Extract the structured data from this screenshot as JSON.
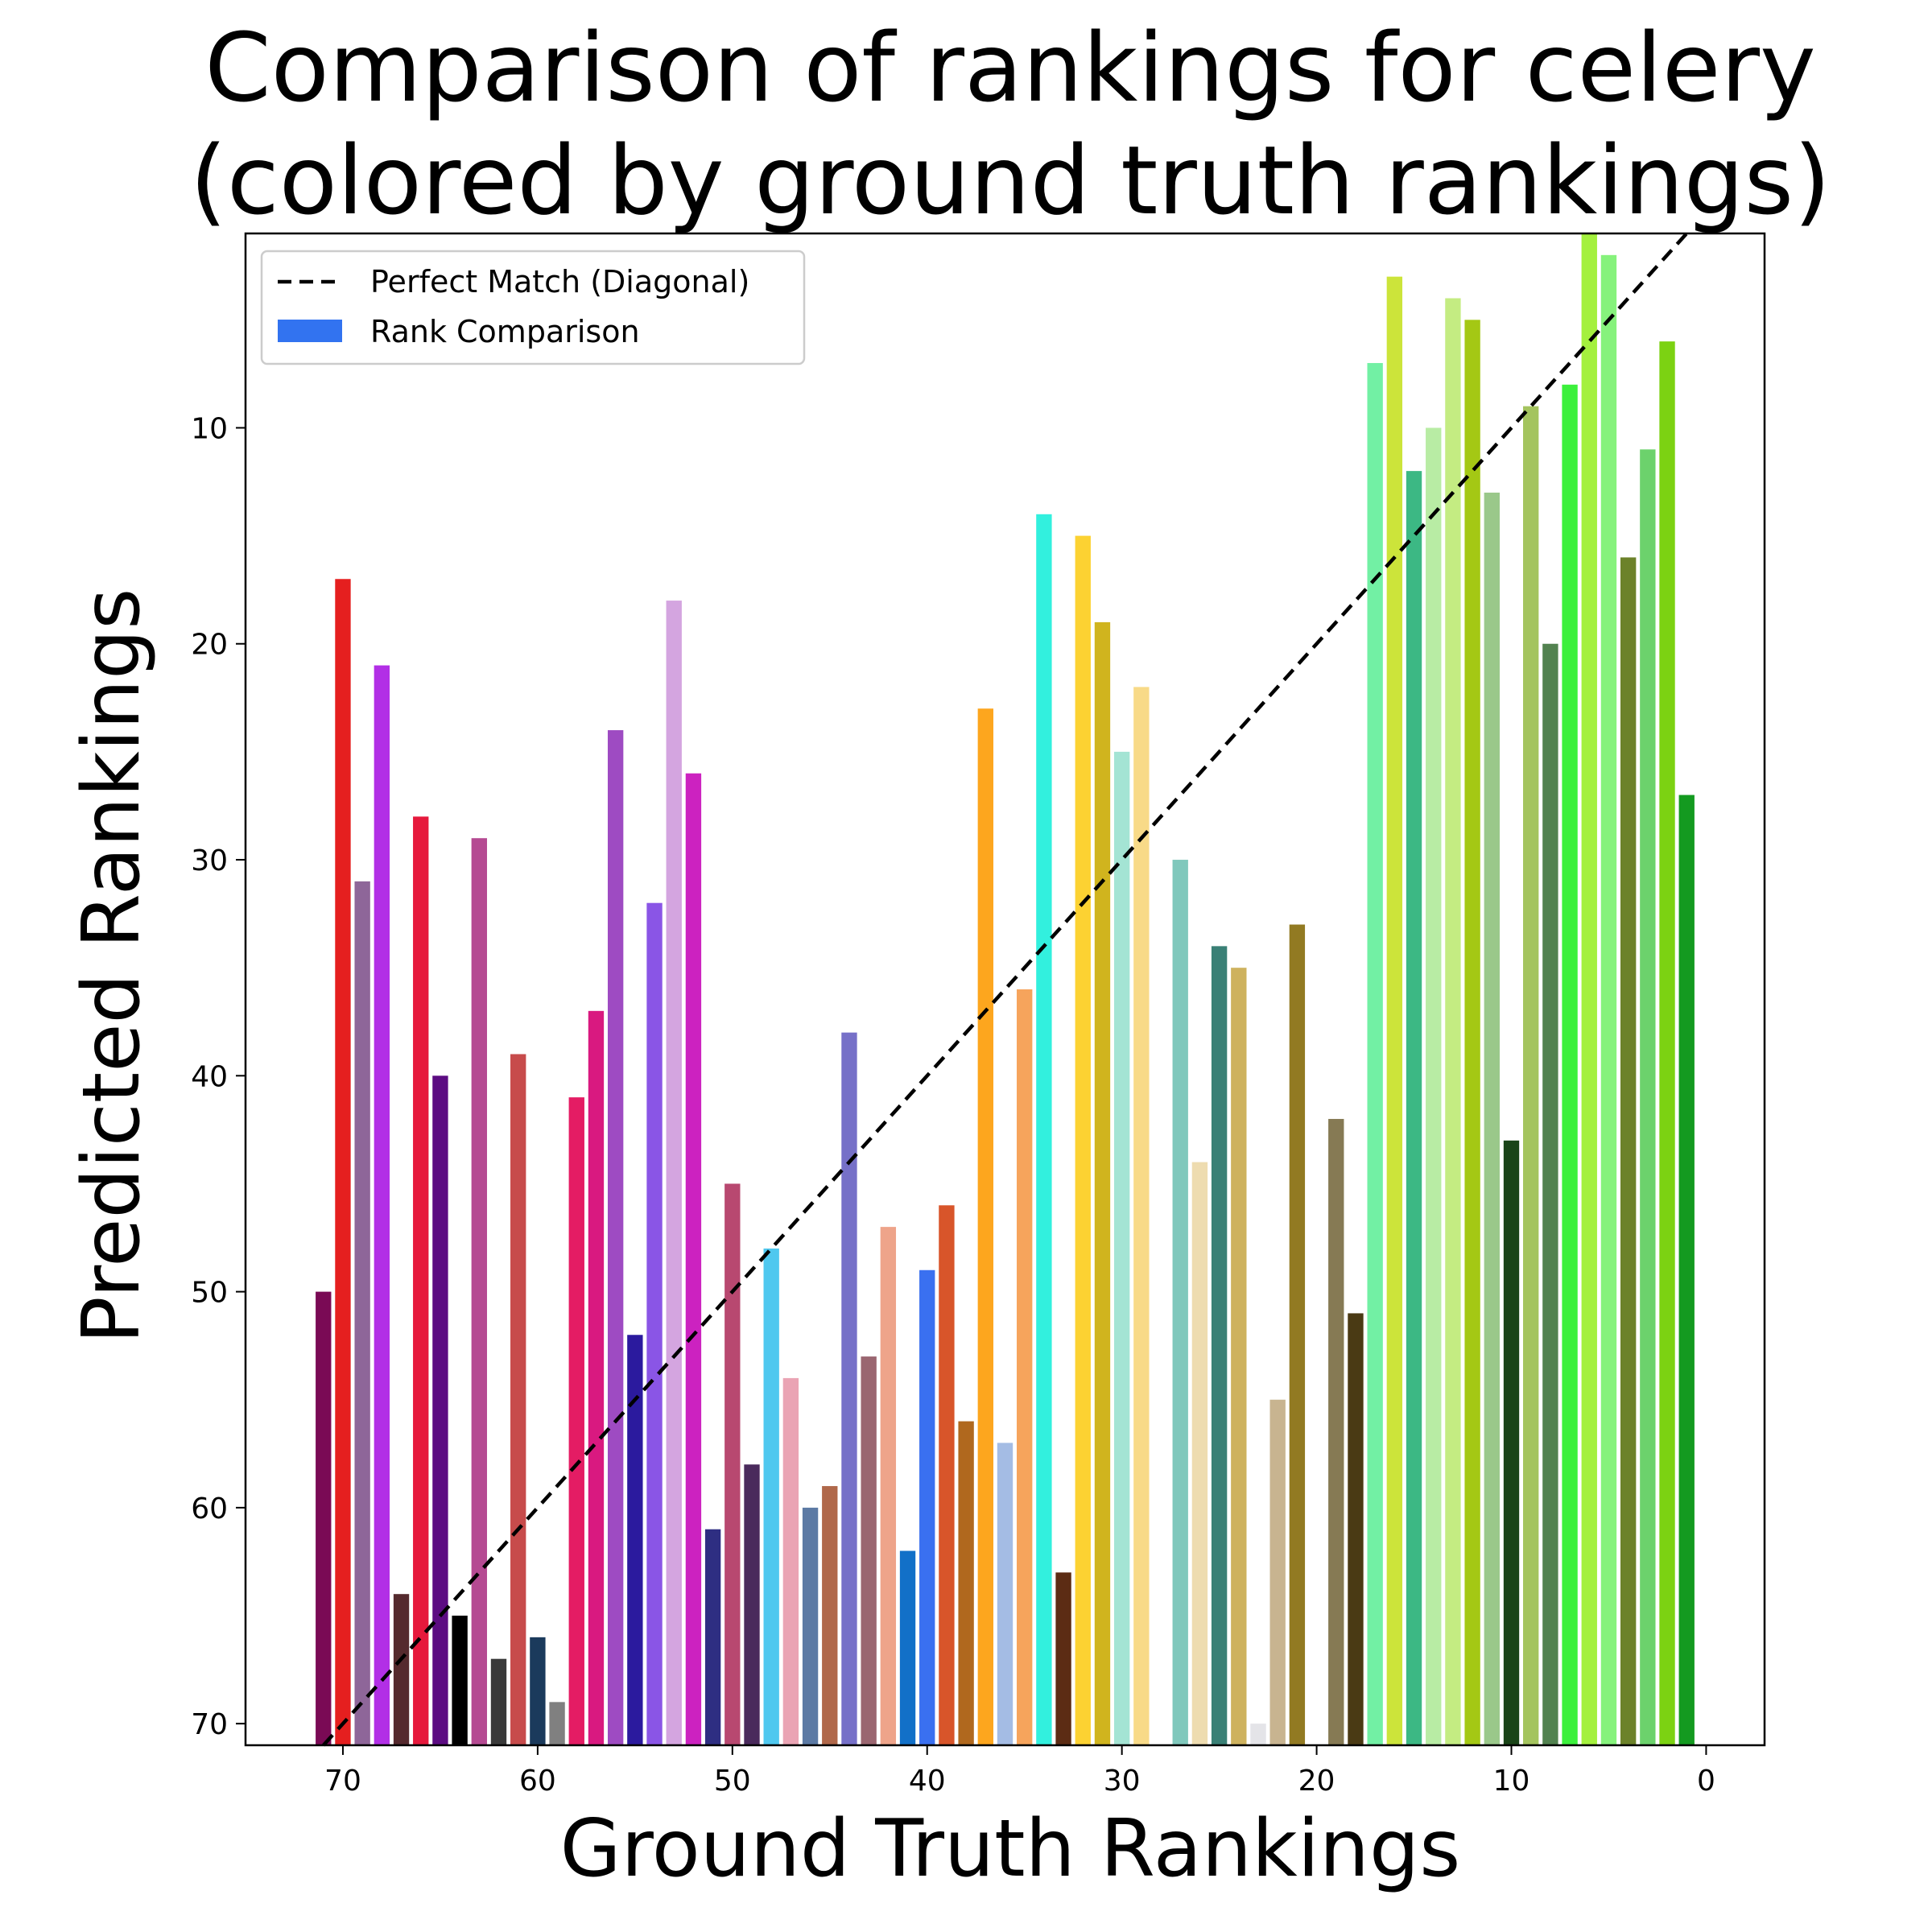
{
  "chart_data": {
    "type": "bar",
    "title_lines": [
      "Comparison of rankings for celery",
      "(colored by ground truth rankings)"
    ],
    "xlabel": "Ground Truth Rankings",
    "ylabel": "Predicted Rankings",
    "x_axis_inverted": true,
    "y_axis_inverted": true,
    "xlim": [
      75,
      -3
    ],
    "ylim": [
      71,
      1
    ],
    "xticks": [
      70,
      60,
      50,
      40,
      30,
      20,
      10,
      0
    ],
    "yticks": [
      10,
      20,
      30,
      40,
      50,
      60,
      70
    ],
    "legend": {
      "placement": "top-left",
      "entries": [
        {
          "label": "Perfect Match (Diagonal)",
          "style": "dashed-line",
          "color": "#000000"
        },
        {
          "label": "Rank Comparison",
          "style": "patch",
          "color": "#3273f0"
        }
      ]
    },
    "diagonal": {
      "style": "dashed",
      "color": "#000000"
    },
    "bars": [
      {
        "x": 71,
        "y": 50,
        "color": "#7a0a55"
      },
      {
        "x": 70,
        "y": 17,
        "color": "#e51f1f"
      },
      {
        "x": 69,
        "y": 31,
        "color": "#8e6699"
      },
      {
        "x": 68,
        "y": 21,
        "color": "#b22fe6"
      },
      {
        "x": 67,
        "y": 64,
        "color": "#552a2e"
      },
      {
        "x": 66,
        "y": 28,
        "color": "#e6193c"
      },
      {
        "x": 65,
        "y": 40,
        "color": "#5c0c82"
      },
      {
        "x": 64,
        "y": 65,
        "color": "#000000"
      },
      {
        "x": 63,
        "y": 29,
        "color": "#b54a92"
      },
      {
        "x": 62,
        "y": 67,
        "color": "#3a3a3a"
      },
      {
        "x": 61,
        "y": 39,
        "color": "#c74b4b"
      },
      {
        "x": 60,
        "y": 66,
        "color": "#1b3a5c"
      },
      {
        "x": 59,
        "y": 69,
        "color": "#808080"
      },
      {
        "x": 58,
        "y": 41,
        "color": "#e41c64"
      },
      {
        "x": 57,
        "y": 37,
        "color": "#d91980"
      },
      {
        "x": 56,
        "y": 24,
        "color": "#9e4bc2"
      },
      {
        "x": 55,
        "y": 52,
        "color": "#2b1a9e"
      },
      {
        "x": 54,
        "y": 32,
        "color": "#8a55e6"
      },
      {
        "x": 53,
        "y": 18,
        "color": "#d4a5e0"
      },
      {
        "x": 52,
        "y": 26,
        "color": "#cc22c0"
      },
      {
        "x": 51,
        "y": 61,
        "color": "#2e2e82"
      },
      {
        "x": 50,
        "y": 45,
        "color": "#b84870"
      },
      {
        "x": 49,
        "y": 58,
        "color": "#4a2a5c"
      },
      {
        "x": 48,
        "y": 48,
        "color": "#4fc8ef"
      },
      {
        "x": 47,
        "y": 54,
        "color": "#eaa4b4"
      },
      {
        "x": 46,
        "y": 60,
        "color": "#5c7aa4"
      },
      {
        "x": 45,
        "y": 59,
        "color": "#b0684a"
      },
      {
        "x": 44,
        "y": 38,
        "color": "#7670c8"
      },
      {
        "x": 43,
        "y": 53,
        "color": "#9a6670"
      },
      {
        "x": 42,
        "y": 47,
        "color": "#eea48a"
      },
      {
        "x": 41,
        "y": 62,
        "color": "#1270c8"
      },
      {
        "x": 40,
        "y": 49,
        "color": "#3a70f0"
      },
      {
        "x": 39,
        "y": 46,
        "color": "#d8552a"
      },
      {
        "x": 38,
        "y": 56,
        "color": "#b0681e"
      },
      {
        "x": 37,
        "y": 23,
        "color": "#fda61e"
      },
      {
        "x": 36,
        "y": 57,
        "color": "#a4bce4"
      },
      {
        "x": 35,
        "y": 36,
        "color": "#f6a45c"
      },
      {
        "x": 34,
        "y": 14,
        "color": "#32f0de"
      },
      {
        "x": 33,
        "y": 63,
        "color": "#5c2c14"
      },
      {
        "x": 32,
        "y": 15,
        "color": "#fcd232"
      },
      {
        "x": 31,
        "y": 19,
        "color": "#d0b41e"
      },
      {
        "x": 30,
        "y": 25,
        "color": "#a4e4d4"
      },
      {
        "x": 29,
        "y": 22,
        "color": "#f8da88"
      },
      {
        "x": 27,
        "y": 30,
        "color": "#80c8bc"
      },
      {
        "x": 26,
        "y": 44,
        "color": "#eedcb0"
      },
      {
        "x": 25,
        "y": 34,
        "color": "#3a8076"
      },
      {
        "x": 24,
        "y": 35,
        "color": "#ceb25e"
      },
      {
        "x": 23,
        "y": 70,
        "color": "#e4e4e8"
      },
      {
        "x": 22,
        "y": 55,
        "color": "#c8b490"
      },
      {
        "x": 21,
        "y": 33,
        "color": "#927a22"
      },
      {
        "x": 19,
        "y": 42,
        "color": "#867a54"
      },
      {
        "x": 18,
        "y": 51,
        "color": "#4a3a14"
      },
      {
        "x": 17,
        "y": 7,
        "color": "#72f0a4"
      },
      {
        "x": 16,
        "y": 3,
        "color": "#cce43a"
      },
      {
        "x": 15,
        "y": 12,
        "color": "#3cb884"
      },
      {
        "x": 14,
        "y": 10,
        "color": "#b8eca4"
      },
      {
        "x": 13,
        "y": 4,
        "color": "#c4ec82"
      },
      {
        "x": 12,
        "y": 5,
        "color": "#a4c814"
      },
      {
        "x": 11,
        "y": 13,
        "color": "#9ac88a"
      },
      {
        "x": 10,
        "y": 43,
        "color": "#1a4418"
      },
      {
        "x": 9,
        "y": 9,
        "color": "#a4c45e"
      },
      {
        "x": 8,
        "y": 20,
        "color": "#528250"
      },
      {
        "x": 7,
        "y": 8,
        "color": "#3cf03c"
      },
      {
        "x": 6,
        "y": 1,
        "color": "#a4f03e"
      },
      {
        "x": 5,
        "y": 2,
        "color": "#86f27c"
      },
      {
        "x": 4,
        "y": 16,
        "color": "#6c822a"
      },
      {
        "x": 3,
        "y": 11,
        "color": "#6cd26c"
      },
      {
        "x": 2,
        "y": 6,
        "color": "#7cd212"
      },
      {
        "x": 1,
        "y": 27,
        "color": "#149a20"
      }
    ]
  }
}
